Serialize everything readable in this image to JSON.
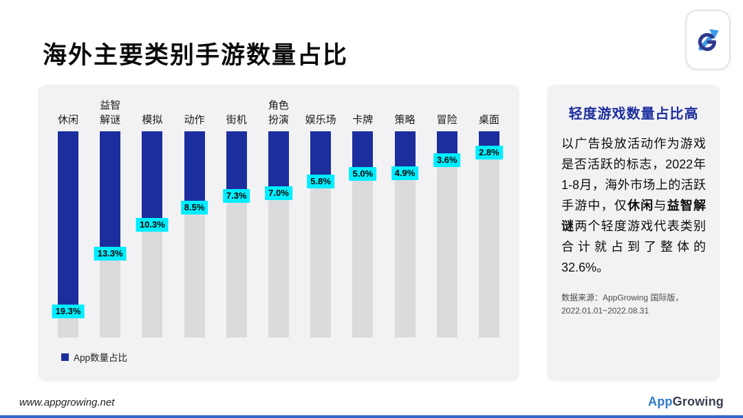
{
  "page": {
    "title": "海外主要类别手游数量占比",
    "accent_line": "#3465CE"
  },
  "chart_data": {
    "type": "bar",
    "title": "海外主要类别手游数量占比",
    "categories": [
      "休闲",
      "益智\n解谜",
      "模拟",
      "动作",
      "街机",
      "角色\n扮演",
      "娱乐场",
      "卡牌",
      "策略",
      "冒险",
      "桌面"
    ],
    "values": [
      19.3,
      13.3,
      10.3,
      8.5,
      7.3,
      7.0,
      5.8,
      5.0,
      4.9,
      3.6,
      2.8
    ],
    "labels": [
      "19.3%",
      "13.3%",
      "10.3%",
      "8.5%",
      "7.3%",
      "7.0%",
      "5.8%",
      "5.0%",
      "4.9%",
      "3.6%",
      "2.8%"
    ],
    "legend": "App数量占比",
    "xlabel": "",
    "ylabel": "",
    "ylim": [
      0,
      19.3
    ],
    "grid": false,
    "legend_position": "bottom-left",
    "orientation": "bars-hang-from-top",
    "colors": {
      "bar": "#1C2E9E",
      "track": "#DBDBDE",
      "label_bg": "#00EDFF"
    }
  },
  "side_panel": {
    "title": "轻度游戏数量占比高",
    "title_color": "#1C2E9E",
    "paragraph_segments": [
      {
        "text": "以广告投放活动作为游戏是否活跃的标志，2022年1-8月，海外市场上的活跃手游中，仅",
        "bold": false
      },
      {
        "text": "休闲",
        "bold": true
      },
      {
        "text": "与",
        "bold": false
      },
      {
        "text": "益智解谜",
        "bold": true
      },
      {
        "text": "两个轻度游戏代表类别合计就占到了整体的32.6%。",
        "bold": false
      }
    ],
    "source_line1": "数据来源：AppGrowing 国际版，",
    "source_line2": "2022.01.01~2022.08.31"
  },
  "footer": {
    "url": "www.appgrowing.net"
  },
  "brand": {
    "app": "App",
    "growing": "Growing",
    "app_color": "#2C7BC6",
    "growing_color": "#3A4050"
  }
}
